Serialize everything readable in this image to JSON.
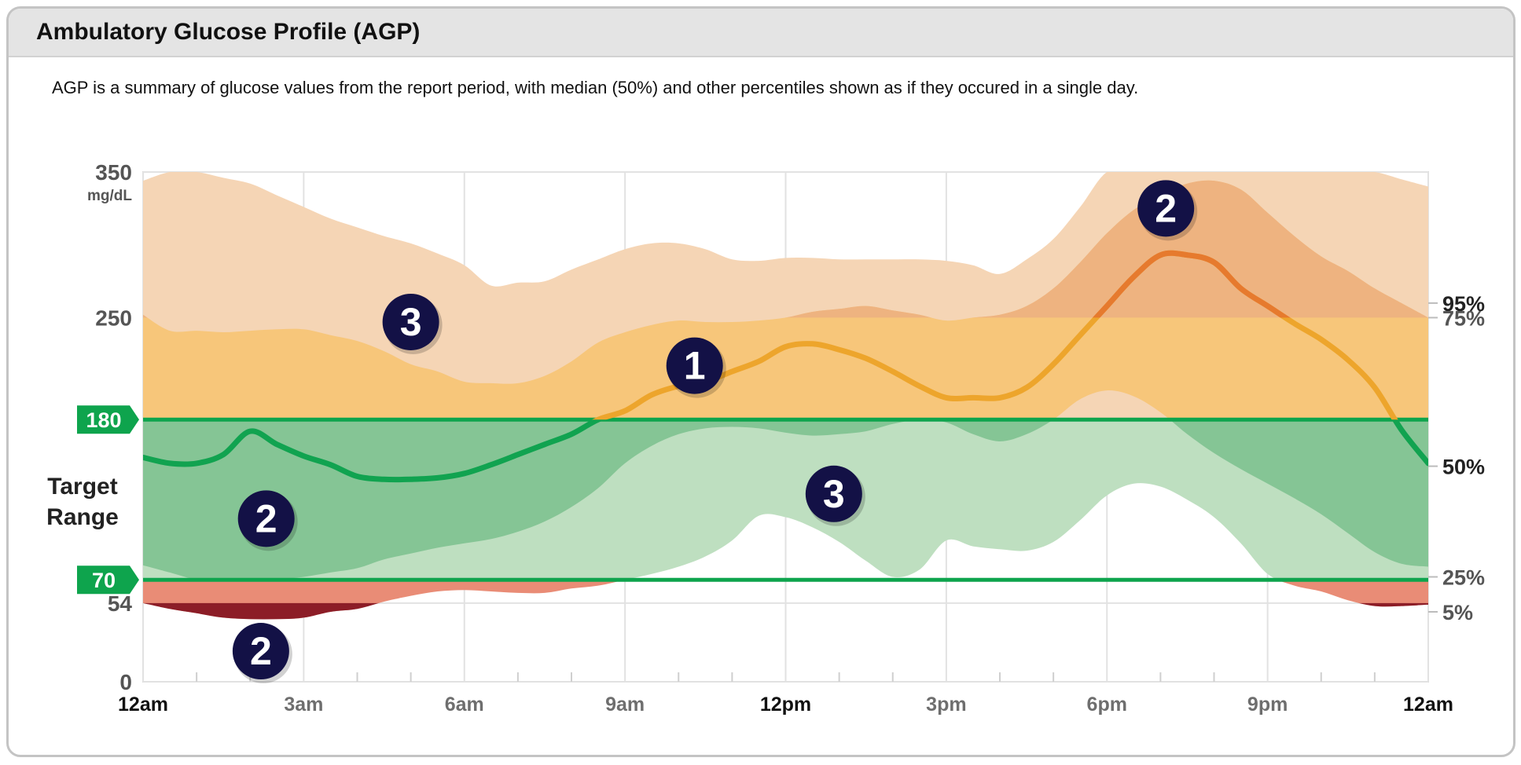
{
  "header": {
    "title": "Ambulatory Glucose Profile (AGP)",
    "description": "AGP is a summary of glucose values from the report period, with median (50%) and other percentiles shown as if they occured in a single day."
  },
  "chart_data": {
    "type": "area",
    "xlabel": "",
    "ylabel": "",
    "ylim": [
      0,
      350
    ],
    "y_unit": "mg/dL",
    "y_ticks": [
      0,
      54,
      250,
      350
    ],
    "xlim": [
      0,
      24
    ],
    "x_ticks": [
      {
        "hour": 0,
        "label": "12am",
        "bold": true
      },
      {
        "hour": 3,
        "label": "3am",
        "bold": false
      },
      {
        "hour": 6,
        "label": "6am",
        "bold": false
      },
      {
        "hour": 9,
        "label": "9am",
        "bold": false
      },
      {
        "hour": 12,
        "label": "12pm",
        "bold": true
      },
      {
        "hour": 15,
        "label": "3pm",
        "bold": false
      },
      {
        "hour": 18,
        "label": "6pm",
        "bold": false
      },
      {
        "hour": 21,
        "label": "9pm",
        "bold": false
      },
      {
        "hour": 24,
        "label": "12am",
        "bold": true
      }
    ],
    "target_range": {
      "label": "Target Range",
      "low": 70,
      "high": 180,
      "low_label": "70",
      "high_label": "180"
    },
    "percentile_labels": [
      {
        "label": "95%",
        "bold": true
      },
      {
        "label": "75%",
        "bold": false
      },
      {
        "label": "50%",
        "bold": true
      },
      {
        "label": "25%",
        "bold": false
      },
      {
        "label": "5%",
        "bold": false
      }
    ],
    "hours": [
      0,
      0.5,
      1,
      1.5,
      2,
      2.5,
      3,
      3.5,
      4,
      4.5,
      5,
      5.5,
      6,
      6.5,
      7,
      7.5,
      8,
      8.5,
      9,
      9.5,
      10,
      10.5,
      11,
      11.5,
      12,
      12.5,
      13,
      13.5,
      14,
      14.5,
      15,
      15.5,
      16,
      16.5,
      17,
      17.5,
      18,
      18.5,
      19,
      19.5,
      20,
      20.5,
      21,
      21.5,
      22,
      22.5,
      23,
      23.5,
      24
    ],
    "series": [
      {
        "name": "95%",
        "values": [
          344,
          350,
          350,
          346,
          342,
          334,
          326,
          318,
          312,
          306,
          301,
          294,
          286,
          272,
          274,
          275,
          283,
          290,
          297,
          301,
          301,
          297,
          290,
          289,
          291,
          291,
          290,
          290,
          290,
          290,
          289,
          286,
          280,
          290,
          304,
          326,
          350,
          350,
          350,
          350,
          350,
          350,
          350,
          350,
          350,
          350,
          350,
          345,
          340
        ]
      },
      {
        "name": "75%",
        "values": [
          252,
          241,
          241,
          240,
          241,
          242,
          242,
          238,
          234,
          227,
          218,
          213,
          206,
          205,
          205,
          210,
          220,
          233,
          240,
          245,
          248,
          247,
          247,
          248,
          250,
          254,
          256,
          258,
          255,
          252,
          248,
          250,
          252,
          258,
          270,
          288,
          308,
          324,
          334,
          342,
          344,
          338,
          322,
          306,
          292,
          282,
          270,
          260,
          250
        ]
      },
      {
        "name": "50%",
        "values": [
          154,
          150,
          150,
          156,
          172,
          163,
          155,
          149,
          141,
          139,
          139,
          140,
          143,
          149,
          156,
          163,
          170,
          180,
          186,
          197,
          203,
          206,
          213,
          220,
          230,
          232,
          228,
          222,
          213,
          203,
          195,
          195,
          195,
          202,
          218,
          238,
          258,
          278,
          293,
          293,
          288,
          270,
          258,
          246,
          235,
          221,
          202,
          173,
          150
        ]
      },
      {
        "name": "25%",
        "values": [
          80,
          75,
          70,
          68,
          68,
          70,
          72,
          75,
          78,
          84,
          88,
          92,
          95,
          98,
          103,
          110,
          120,
          133,
          150,
          162,
          170,
          174,
          175,
          174,
          171,
          169,
          170,
          172,
          177,
          180,
          178,
          170,
          165,
          170,
          180,
          194,
          200,
          196,
          185,
          170,
          157,
          146,
          136,
          126,
          115,
          102,
          89,
          81,
          79
        ]
      },
      {
        "name": "5%",
        "values": [
          54,
          50,
          47,
          44,
          43,
          43,
          44,
          48,
          50,
          55,
          59,
          62,
          63,
          62,
          61,
          61,
          64,
          66,
          70,
          74,
          79,
          86,
          97,
          114,
          113,
          106,
          96,
          83,
          72,
          77,
          97,
          93,
          91,
          90,
          96,
          111,
          128,
          136,
          134,
          125,
          113,
          95,
          74,
          66,
          62,
          56,
          52,
          52,
          53
        ]
      }
    ],
    "callouts": [
      {
        "label": "1",
        "hour": 10.3,
        "value": 217
      },
      {
        "label": "2",
        "hour": 19.1,
        "value": 325
      },
      {
        "label": "2",
        "hour": 2.3,
        "value": 112
      },
      {
        "label": "2",
        "hour": 2.2,
        "value": 21
      },
      {
        "label": "3",
        "hour": 5.0,
        "value": 247
      },
      {
        "label": "3",
        "hour": 12.9,
        "value": 129
      }
    ],
    "colors": {
      "above_outer": "#f5d5b5",
      "above_outer_high": "#eeb380",
      "above_inner": "#f7c67a",
      "above_pale": "#fad7a3",
      "target_inner": "#85c595",
      "target_outer": "#bedfc0",
      "target_band_pale": "#bee0c0",
      "below_band": "#e98c76",
      "very_low": "#8c1d27",
      "median_high": "#eda52c",
      "median_very_high": "#e67a2e",
      "median_in_range": "#11a350",
      "target_line": "#0ea44d",
      "callout_bg": "#131146",
      "grid": "#e2e2e2",
      "axis_text": "#555555"
    }
  }
}
